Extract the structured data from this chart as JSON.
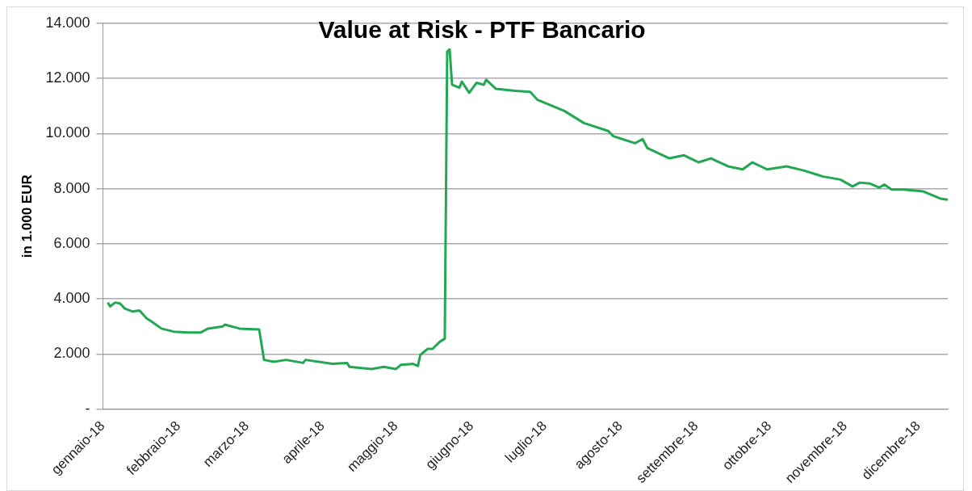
{
  "chart_data": {
    "type": "line",
    "title": "Value at Risk - PTF Bancario",
    "ylabel": "in 1.000 EUR",
    "x": [
      "2018-01-03",
      "2018-01-04",
      "2018-01-06",
      "2018-01-08",
      "2018-01-10",
      "2018-01-13",
      "2018-01-16",
      "2018-01-19",
      "2018-01-21",
      "2018-01-25",
      "2018-01-30",
      "2018-02-05",
      "2018-02-10",
      "2018-02-13",
      "2018-02-19",
      "2018-02-20",
      "2018-02-26",
      "2018-03-06",
      "2018-03-08",
      "2018-03-12",
      "2018-03-17",
      "2018-03-24",
      "2018-03-25",
      "2018-04-05",
      "2018-04-11",
      "2018-04-12",
      "2018-04-21",
      "2018-04-26",
      "2018-05-01",
      "2018-05-03",
      "2018-05-08",
      "2018-05-10",
      "2018-05-11",
      "2018-05-14",
      "2018-05-16",
      "2018-05-19",
      "2018-05-21",
      "2018-05-22",
      "2018-05-23",
      "2018-05-24",
      "2018-05-27",
      "2018-05-28",
      "2018-05-31",
      "2018-06-03",
      "2018-06-06",
      "2018-06-07",
      "2018-06-11",
      "2018-06-19",
      "2018-06-25",
      "2018-06-28",
      "2018-07-09",
      "2018-07-17",
      "2018-07-27",
      "2018-07-29",
      "2018-08-07",
      "2018-08-10",
      "2018-08-12",
      "2018-08-21",
      "2018-08-27",
      "2018-09-02",
      "2018-09-07",
      "2018-09-14",
      "2018-09-20",
      "2018-09-24",
      "2018-09-30",
      "2018-10-08",
      "2018-10-15",
      "2018-10-23",
      "2018-10-30",
      "2018-11-04",
      "2018-11-07",
      "2018-11-11",
      "2018-11-15",
      "2018-11-17",
      "2018-11-20",
      "2018-11-25",
      "2018-12-03",
      "2018-12-10",
      "2018-12-13"
    ],
    "series": [
      {
        "color": "#22a852",
        "values": [
          3875,
          3730,
          3870,
          3840,
          3650,
          3545,
          3580,
          3290,
          3180,
          2925,
          2815,
          2780,
          2780,
          2925,
          3000,
          3070,
          2925,
          2890,
          1790,
          1720,
          1790,
          1680,
          1790,
          1645,
          1680,
          1535,
          1460,
          1535,
          1460,
          1610,
          1645,
          1570,
          1970,
          2190,
          2190,
          2450,
          2560,
          12975,
          13050,
          11770,
          11660,
          11880,
          11480,
          11840,
          11770,
          11950,
          11620,
          11550,
          11510,
          11220,
          10820,
          10380,
          10090,
          9905,
          9650,
          9800,
          9470,
          9100,
          9210,
          8955,
          9100,
          8810,
          8700,
          8955,
          8700,
          8810,
          8660,
          8440,
          8330,
          8080,
          8220,
          8190,
          8040,
          8150,
          7970,
          7970,
          7900,
          7640,
          7600
        ]
      }
    ],
    "xlim": [
      "2018-01-01",
      "2018-12-13"
    ],
    "xticks": [
      {
        "value": "2018-01-01",
        "label": "gennaio-18"
      },
      {
        "value": "2018-02-01",
        "label": "febbraio-18"
      },
      {
        "value": "2018-03-01",
        "label": "marzo-18"
      },
      {
        "value": "2018-04-01",
        "label": "aprile-18"
      },
      {
        "value": "2018-05-01",
        "label": "maggio-18"
      },
      {
        "value": "2018-06-01",
        "label": "giugno-18"
      },
      {
        "value": "2018-07-01",
        "label": "luglio-18"
      },
      {
        "value": "2018-08-01",
        "label": "agosto-18"
      },
      {
        "value": "2018-09-01",
        "label": "settembre-18"
      },
      {
        "value": "2018-10-01",
        "label": "ottobre-18"
      },
      {
        "value": "2018-11-01",
        "label": "novembre-18"
      },
      {
        "value": "2018-12-01",
        "label": "dicembre-18"
      }
    ],
    "ylim": [
      0,
      14000
    ],
    "yticks": [
      {
        "value": 0,
        "label": "-"
      },
      {
        "value": 2000,
        "label": "2.000"
      },
      {
        "value": 4000,
        "label": "4.000"
      },
      {
        "value": 6000,
        "label": "6.000"
      },
      {
        "value": 8000,
        "label": "8.000"
      },
      {
        "value": 10000,
        "label": "10.000"
      },
      {
        "value": 12000,
        "label": "12.000"
      },
      {
        "value": 14000,
        "label": "14.000"
      }
    ],
    "grid": "y",
    "legend": false,
    "marker": "none",
    "line_style": "solid"
  }
}
